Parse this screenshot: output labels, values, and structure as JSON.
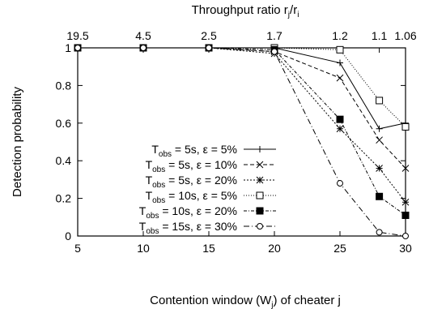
{
  "chart_data": {
    "type": "line",
    "xlabel": "Contention window (W",
    "xlabel_sub": "j",
    "xlabel_tail": ") of cheater j",
    "ylabel": "Detection probability",
    "top_xlabel": "Throughput ratio r",
    "top_xlabel_sub1": "j",
    "top_xlabel_mid": "/r",
    "top_xlabel_sub2": "i",
    "xlim": [
      5,
      30
    ],
    "ylim": [
      0,
      1
    ],
    "x_ticks": [
      {
        "value": 5,
        "label": "5"
      },
      {
        "value": 10,
        "label": "10"
      },
      {
        "value": 15,
        "label": "15"
      },
      {
        "value": 20,
        "label": "20"
      },
      {
        "value": 25,
        "label": "25"
      },
      {
        "value": 30,
        "label": "30"
      }
    ],
    "y_ticks": [
      {
        "value": 0,
        "label": "0"
      },
      {
        "value": 0.2,
        "label": "0.2"
      },
      {
        "value": 0.4,
        "label": "0.4"
      },
      {
        "value": 0.6,
        "label": "0.6"
      },
      {
        "value": 0.8,
        "label": "0.8"
      },
      {
        "value": 1,
        "label": "1"
      }
    ],
    "top_ticks": [
      {
        "value": 5,
        "label": "19.5"
      },
      {
        "value": 10,
        "label": "4.5"
      },
      {
        "value": 15,
        "label": "2.5"
      },
      {
        "value": 20,
        "label": "1.7"
      },
      {
        "value": 25,
        "label": "1.2"
      },
      {
        "value": 28,
        "label": "1.1"
      },
      {
        "value": 30,
        "label": "1.06"
      }
    ],
    "grid": false,
    "legend_position": "bottom-left",
    "series": [
      {
        "name": "T_obs = 5s, ε = 5%",
        "label_pre": "T",
        "label_sub": "obs",
        "label_post": " = 5s, ε = 5%",
        "marker": "plus",
        "dash": "solid",
        "x": [
          5,
          10,
          15,
          20,
          25,
          28,
          30
        ],
        "y": [
          1,
          1,
          1,
          1,
          0.92,
          0.57,
          0.6
        ]
      },
      {
        "name": "T_obs = 5s, ε = 10%",
        "label_pre": "T",
        "label_sub": "obs",
        "label_post": " = 5s, ε = 10%",
        "marker": "cross",
        "dash": "dashed",
        "x": [
          5,
          10,
          15,
          20,
          25,
          28,
          30
        ],
        "y": [
          1,
          1,
          1,
          0.98,
          0.84,
          0.51,
          0.36
        ]
      },
      {
        "name": "T_obs = 5s, ε = 20%",
        "label_pre": "T",
        "label_sub": "obs",
        "label_post": " = 5s, ε = 20%",
        "marker": "star",
        "dash": "short-dash",
        "x": [
          5,
          10,
          15,
          20,
          25,
          28,
          30
        ],
        "y": [
          1,
          1,
          1,
          0.97,
          0.57,
          0.36,
          0.18
        ]
      },
      {
        "name": "T_obs = 10s, ε = 5%",
        "label_pre": "T",
        "label_sub": "obs",
        "label_post": " = 10s, ε = 5%",
        "marker": "open-square",
        "dash": "dotted",
        "x": [
          5,
          10,
          15,
          20,
          25,
          28,
          30
        ],
        "y": [
          1,
          1,
          1,
          1,
          0.99,
          0.72,
          0.58
        ]
      },
      {
        "name": "T_obs = 10s, ε = 20%",
        "label_pre": "T",
        "label_sub": "obs",
        "label_post": " = 10s, ε = 20%",
        "marker": "filled-square",
        "dash": "dash-dot",
        "x": [
          5,
          10,
          15,
          20,
          25,
          28,
          30
        ],
        "y": [
          1,
          1,
          1,
          0.99,
          0.62,
          0.21,
          0.11
        ]
      },
      {
        "name": "T_obs = 15s, ε = 30%",
        "label_pre": "T",
        "label_sub": "obs",
        "label_post": " = 15s, ε = 30%",
        "marker": "open-circle",
        "dash": "long-dash-dot",
        "x": [
          5,
          10,
          15,
          20,
          25,
          28,
          30
        ],
        "y": [
          1,
          1,
          1,
          0.98,
          0.28,
          0.02,
          0
        ]
      }
    ]
  }
}
